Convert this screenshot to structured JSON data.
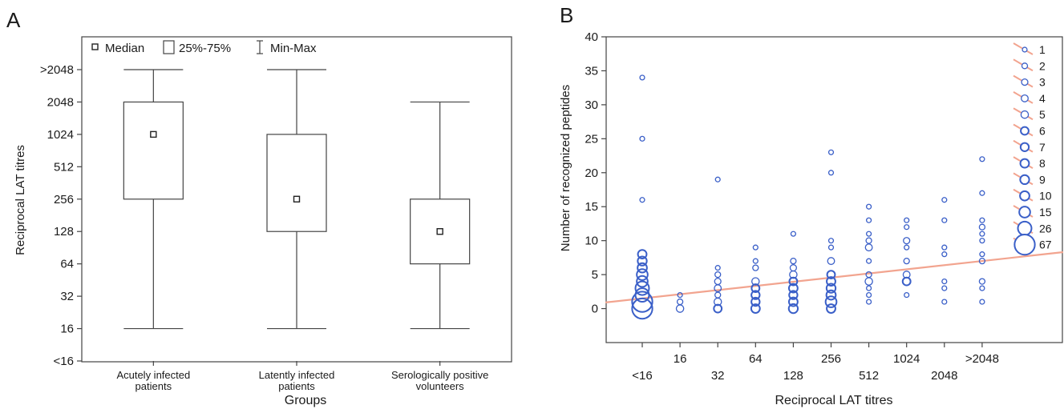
{
  "panels": {
    "a_label": "A",
    "b_label": "B"
  },
  "chart_data": [
    {
      "type": "box",
      "panel": "A",
      "xlabel": "Groups",
      "ylabel": "Reciprocal LAT titres",
      "y_scale": "log2 ordinal",
      "y_ticks": [
        "<16",
        "16",
        "32",
        "64",
        "128",
        "256",
        "512",
        "1024",
        "2048",
        ">2048"
      ],
      "legend": {
        "placement": "top-left",
        "median": "Median",
        "box": "25%-75%",
        "whisker": "Min-Max"
      },
      "groups": [
        {
          "label_line1": "Acutely infected",
          "label_line2": "patients",
          "min": "16",
          "q1": "256",
          "median": "1024",
          "q3": "2048",
          "max": ">2048"
        },
        {
          "label_line1": "Latently infected",
          "label_line2": "patients",
          "min": "16",
          "q1": "128",
          "median": "256",
          "q3": "1024",
          "max": ">2048"
        },
        {
          "label_line1": "Serologically positive",
          "label_line2": "volunteers",
          "min": "16",
          "q1": "64",
          "median": "128",
          "q3": "256",
          "max": "2048"
        }
      ],
      "colors": {
        "box": "#444444",
        "median": "#222222"
      }
    },
    {
      "type": "scatter",
      "panel": "B",
      "xlabel": "Reciprocal LAT titres",
      "ylabel": "Number of recognized  peptides",
      "x_categories": [
        "<16",
        "16",
        "32",
        "64",
        "128",
        "256",
        "512",
        "1024",
        "2048",
        ">2048"
      ],
      "ylim": [
        -5,
        40
      ],
      "y_ticks": [
        0,
        5,
        10,
        15,
        20,
        25,
        30,
        35,
        40
      ],
      "size_legend": {
        "placement": "right",
        "entries": [
          "1",
          "2",
          "3",
          "4",
          "5",
          "6",
          "7",
          "8",
          "9",
          "10",
          "15",
          "26",
          "67"
        ]
      },
      "points": [
        {
          "x": "<16",
          "y": 34,
          "n": 1
        },
        {
          "x": "<16",
          "y": 25,
          "n": 1
        },
        {
          "x": "<16",
          "y": 16,
          "n": 1
        },
        {
          "x": "<16",
          "y": 8,
          "n": 8
        },
        {
          "x": "<16",
          "y": 7,
          "n": 9
        },
        {
          "x": "<16",
          "y": 6,
          "n": 10
        },
        {
          "x": "<16",
          "y": 5,
          "n": 15
        },
        {
          "x": "<16",
          "y": 4,
          "n": 15
        },
        {
          "x": "<16",
          "y": 3,
          "n": 26
        },
        {
          "x": "<16",
          "y": 2,
          "n": 26
        },
        {
          "x": "<16",
          "y": 1,
          "n": 67
        },
        {
          "x": "<16",
          "y": 0,
          "n": 67
        },
        {
          "x": "16",
          "y": 2,
          "n": 1
        },
        {
          "x": "16",
          "y": 1,
          "n": 2
        },
        {
          "x": "16",
          "y": 0,
          "n": 5
        },
        {
          "x": "32",
          "y": 19,
          "n": 1
        },
        {
          "x": "32",
          "y": 6,
          "n": 1
        },
        {
          "x": "32",
          "y": 5,
          "n": 2
        },
        {
          "x": "32",
          "y": 4,
          "n": 3
        },
        {
          "x": "32",
          "y": 3,
          "n": 4
        },
        {
          "x": "32",
          "y": 2,
          "n": 2
        },
        {
          "x": "32",
          "y": 1,
          "n": 5
        },
        {
          "x": "32",
          "y": 0,
          "n": 6
        },
        {
          "x": "64",
          "y": 9,
          "n": 1
        },
        {
          "x": "64",
          "y": 7,
          "n": 1
        },
        {
          "x": "64",
          "y": 6,
          "n": 2
        },
        {
          "x": "64",
          "y": 4,
          "n": 5
        },
        {
          "x": "64",
          "y": 3,
          "n": 6
        },
        {
          "x": "64",
          "y": 2,
          "n": 7
        },
        {
          "x": "64",
          "y": 1,
          "n": 7
        },
        {
          "x": "64",
          "y": 0,
          "n": 8
        },
        {
          "x": "128",
          "y": 11,
          "n": 1
        },
        {
          "x": "128",
          "y": 7,
          "n": 2
        },
        {
          "x": "128",
          "y": 6,
          "n": 3
        },
        {
          "x": "128",
          "y": 5,
          "n": 5
        },
        {
          "x": "128",
          "y": 4,
          "n": 6
        },
        {
          "x": "128",
          "y": 3,
          "n": 8
        },
        {
          "x": "128",
          "y": 2,
          "n": 7
        },
        {
          "x": "128",
          "y": 1,
          "n": 8
        },
        {
          "x": "128",
          "y": 0,
          "n": 9
        },
        {
          "x": "256",
          "y": 23,
          "n": 1
        },
        {
          "x": "256",
          "y": 20,
          "n": 1
        },
        {
          "x": "256",
          "y": 10,
          "n": 1
        },
        {
          "x": "256",
          "y": 9,
          "n": 1
        },
        {
          "x": "256",
          "y": 7,
          "n": 4
        },
        {
          "x": "256",
          "y": 5,
          "n": 6
        },
        {
          "x": "256",
          "y": 4,
          "n": 8
        },
        {
          "x": "256",
          "y": 3,
          "n": 9
        },
        {
          "x": "256",
          "y": 2,
          "n": 10
        },
        {
          "x": "256",
          "y": 1,
          "n": 15
        },
        {
          "x": "256",
          "y": 0,
          "n": 8
        },
        {
          "x": "512",
          "y": 15,
          "n": 1
        },
        {
          "x": "512",
          "y": 13,
          "n": 1
        },
        {
          "x": "512",
          "y": 11,
          "n": 1
        },
        {
          "x": "512",
          "y": 10,
          "n": 2
        },
        {
          "x": "512",
          "y": 9,
          "n": 4
        },
        {
          "x": "512",
          "y": 7,
          "n": 1
        },
        {
          "x": "512",
          "y": 5,
          "n": 2
        },
        {
          "x": "512",
          "y": 4,
          "n": 5
        },
        {
          "x": "512",
          "y": 3,
          "n": 1
        },
        {
          "x": "512",
          "y": 2,
          "n": 1
        },
        {
          "x": "512",
          "y": 1,
          "n": 1
        },
        {
          "x": "1024",
          "y": 13,
          "n": 1
        },
        {
          "x": "1024",
          "y": 12,
          "n": 1
        },
        {
          "x": "1024",
          "y": 10,
          "n": 3
        },
        {
          "x": "1024",
          "y": 9,
          "n": 1
        },
        {
          "x": "1024",
          "y": 7,
          "n": 2
        },
        {
          "x": "1024",
          "y": 5,
          "n": 4
        },
        {
          "x": "1024",
          "y": 4,
          "n": 6
        },
        {
          "x": "1024",
          "y": 2,
          "n": 1
        },
        {
          "x": "2048",
          "y": 16,
          "n": 1
        },
        {
          "x": "2048",
          "y": 13,
          "n": 1
        },
        {
          "x": "2048",
          "y": 9,
          "n": 1
        },
        {
          "x": "2048",
          "y": 8,
          "n": 1
        },
        {
          "x": "2048",
          "y": 4,
          "n": 1
        },
        {
          "x": "2048",
          "y": 3,
          "n": 1
        },
        {
          "x": "2048",
          "y": 1,
          "n": 1
        },
        {
          "x": ">2048",
          "y": 22,
          "n": 1
        },
        {
          "x": ">2048",
          "y": 17,
          "n": 1
        },
        {
          "x": ">2048",
          "y": 13,
          "n": 1
        },
        {
          "x": ">2048",
          "y": 12,
          "n": 2
        },
        {
          "x": ">2048",
          "y": 11,
          "n": 1
        },
        {
          "x": ">2048",
          "y": 10,
          "n": 1
        },
        {
          "x": ">2048",
          "y": 8,
          "n": 1
        },
        {
          "x": ">2048",
          "y": 7,
          "n": 2
        },
        {
          "x": ">2048",
          "y": 4,
          "n": 2
        },
        {
          "x": ">2048",
          "y": 3,
          "n": 1
        },
        {
          "x": ">2048",
          "y": 1,
          "n": 1
        }
      ],
      "trend_line": {
        "x_start": "<16",
        "y_start": 1.5,
        "x_end": ">2048",
        "y_end": 7
      },
      "colors": {
        "points": "#3a5fc8",
        "trend": "#f2a48f",
        "hatch": "#f2a48f"
      }
    }
  ]
}
